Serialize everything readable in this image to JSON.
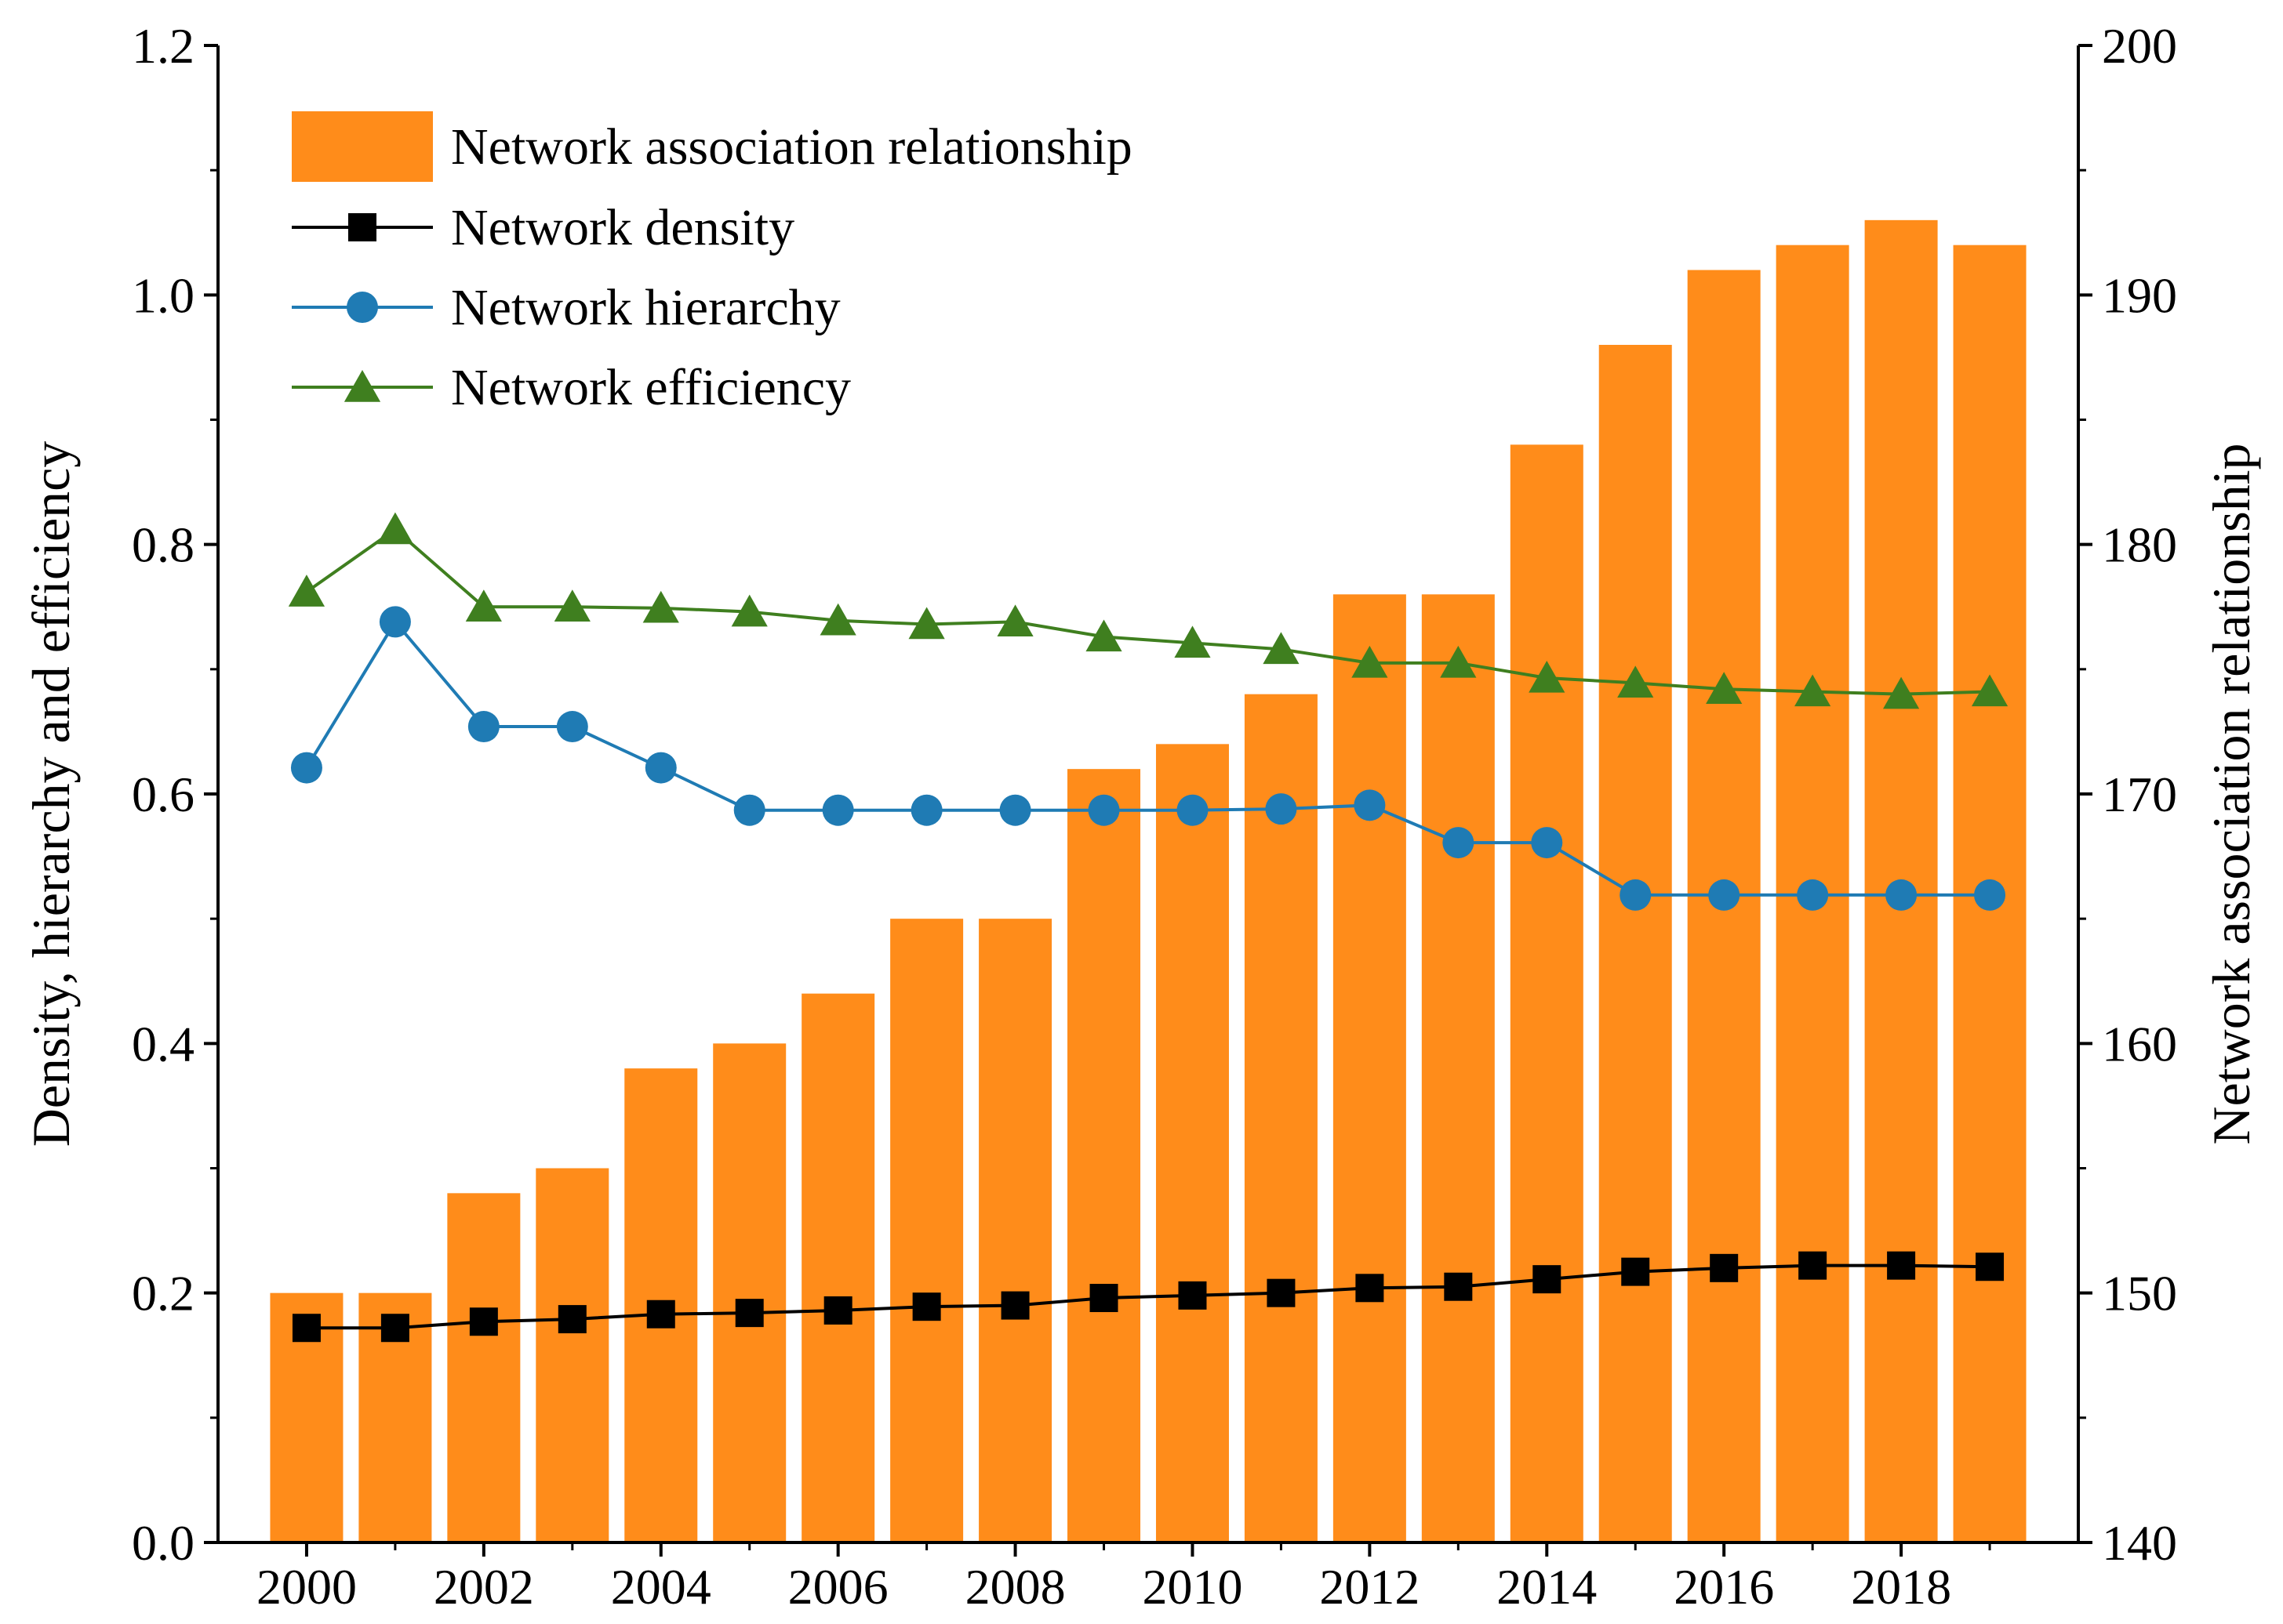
{
  "chart_data": {
    "type": "bar+line",
    "title": "",
    "xlabel": "",
    "ylabel_left": "Density, hierarchy and efficiency",
    "ylabel_right": "Network association relationship",
    "x": [
      2000,
      2001,
      2002,
      2003,
      2004,
      2005,
      2006,
      2007,
      2008,
      2009,
      2010,
      2011,
      2012,
      2013,
      2014,
      2015,
      2016,
      2017,
      2018,
      2019
    ],
    "x_ticks": [
      "2000",
      "2002",
      "2004",
      "2006",
      "2008",
      "2010",
      "2012",
      "2014",
      "2016",
      "2018"
    ],
    "x_range": [
      1999,
      2020
    ],
    "y_left_range": [
      0,
      1.2
    ],
    "y_left_ticks": [
      "0.0",
      "0.2",
      "0.4",
      "0.6",
      "0.8",
      "1.0",
      "1.2"
    ],
    "y_right_range": [
      140,
      200
    ],
    "y_right_ticks": [
      "140",
      "150",
      "160",
      "170",
      "180",
      "190",
      "200"
    ],
    "grid": false,
    "legend_position": "top-left",
    "bars": {
      "name": "Network association relationship",
      "axis": "right",
      "color": "#FF8C1A",
      "values": [
        150,
        150,
        154,
        155,
        159,
        160,
        162,
        165,
        165,
        171,
        172,
        174,
        178,
        178,
        184,
        188,
        191,
        192,
        193,
        192
      ]
    },
    "series": [
      {
        "name": "Network density",
        "axis": "left",
        "color": "#000000",
        "marker": "square",
        "values": [
          0.172,
          0.172,
          0.177,
          0.179,
          0.183,
          0.184,
          0.186,
          0.189,
          0.19,
          0.196,
          0.198,
          0.2,
          0.204,
          0.205,
          0.211,
          0.217,
          0.22,
          0.222,
          0.222,
          0.221
        ]
      },
      {
        "name": "Network hierarchy",
        "axis": "left",
        "color": "#1F7BB4",
        "marker": "circle",
        "values": [
          0.621,
          0.738,
          0.654,
          0.654,
          0.621,
          0.587,
          0.587,
          0.587,
          0.587,
          0.587,
          0.587,
          0.588,
          0.591,
          0.561,
          0.561,
          0.519,
          0.519,
          0.519,
          0.519,
          0.519
        ]
      },
      {
        "name": "Network efficiency",
        "axis": "left",
        "color": "#3F7F1F",
        "marker": "triangle",
        "values": [
          0.762,
          0.812,
          0.75,
          0.75,
          0.749,
          0.746,
          0.739,
          0.736,
          0.738,
          0.726,
          0.721,
          0.716,
          0.705,
          0.705,
          0.693,
          0.689,
          0.684,
          0.682,
          0.68,
          0.682
        ]
      }
    ]
  }
}
